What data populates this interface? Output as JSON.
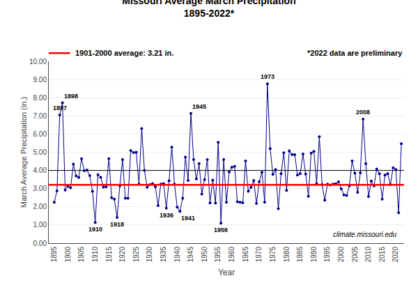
{
  "chart_data": {
    "type": "line",
    "title": "Missouri Average March Precipitation",
    "subtitle": "1895-2022*",
    "xlabel": "Year",
    "ylabel": "March Average Precipitation (in.)",
    "note": "*2022 data are preliminary",
    "source": "climate.missouri.edu",
    "color": "#00008B",
    "marker": "circle",
    "grid": true,
    "x": [
      1895,
      1896,
      1897,
      1898,
      1899,
      1900,
      1901,
      1902,
      1903,
      1904,
      1905,
      1906,
      1907,
      1908,
      1909,
      1910,
      1911,
      1912,
      1913,
      1914,
      1915,
      1916,
      1917,
      1918,
      1919,
      1920,
      1921,
      1922,
      1923,
      1924,
      1925,
      1926,
      1927,
      1928,
      1929,
      1930,
      1931,
      1932,
      1933,
      1934,
      1935,
      1936,
      1937,
      1938,
      1939,
      1940,
      1941,
      1942,
      1943,
      1944,
      1945,
      1946,
      1947,
      1948,
      1949,
      1950,
      1951,
      1952,
      1953,
      1954,
      1955,
      1956,
      1957,
      1958,
      1959,
      1960,
      1961,
      1962,
      1963,
      1964,
      1965,
      1966,
      1967,
      1968,
      1969,
      1970,
      1971,
      1972,
      1973,
      1974,
      1975,
      1976,
      1977,
      1978,
      1979,
      1980,
      1981,
      1982,
      1983,
      1984,
      1985,
      1986,
      1987,
      1988,
      1989,
      1990,
      1991,
      1992,
      1993,
      1994,
      1995,
      1996,
      1997,
      1998,
      1999,
      2000,
      2001,
      2002,
      2003,
      2004,
      2005,
      2006,
      2007,
      2008,
      2009,
      2010,
      2011,
      2012,
      2013,
      2014,
      2015,
      2016,
      2017,
      2018,
      2019,
      2020,
      2021,
      2022
    ],
    "values": [
      2.25,
      2.87,
      7.05,
      7.72,
      2.92,
      3.13,
      3.05,
      4.35,
      3.7,
      3.61,
      4.65,
      3.98,
      4.02,
      3.72,
      2.85,
      1.14,
      3.76,
      3.62,
      3.08,
      3.1,
      4.65,
      2.5,
      2.42,
      1.42,
      3.15,
      4.6,
      2.47,
      2.47,
      5.1,
      4.98,
      5.0,
      3.25,
      6.3,
      4.0,
      3.07,
      3.22,
      3.28,
      3.1,
      2.07,
      3.25,
      3.28,
      1.93,
      3.43,
      5.28,
      3.25,
      1.98,
      1.75,
      2.47,
      4.73,
      3.45,
      7.14,
      4.6,
      3.53,
      4.38,
      2.7,
      3.5,
      4.6,
      2.21,
      3.47,
      2.2,
      5.55,
      1.1,
      4.6,
      2.25,
      3.92,
      4.18,
      4.22,
      2.28,
      2.25,
      2.22,
      4.52,
      2.85,
      3.07,
      3.45,
      2.18,
      3.38,
      3.9,
      2.25,
      8.76,
      5.2,
      3.78,
      4.05,
      1.9,
      3.82,
      4.97,
      2.9,
      5.08,
      4.88,
      4.87,
      3.75,
      3.82,
      4.9,
      3.8,
      2.58,
      4.95,
      5.05,
      3.28,
      5.85,
      3.22,
      2.37,
      3.25,
      3.2,
      3.25,
      3.27,
      3.37,
      2.99,
      2.65,
      2.62,
      3.15,
      4.52,
      3.85,
      2.8,
      3.87,
      6.82,
      4.37,
      2.57,
      3.42,
      3.15,
      4.08,
      3.82,
      2.42,
      3.75,
      3.82,
      3.22,
      4.15,
      4.05,
      1.68,
      5.47
    ],
    "reference_lines": [
      {
        "value": 3.21,
        "color": "#FF0000",
        "label": "1901-2000 average: 3.21 in."
      },
      {
        "value": 4.0,
        "color": "#000000"
      }
    ],
    "annotations": [
      {
        "x": 1897,
        "y": 7.05,
        "text": "1897"
      },
      {
        "x": 1898,
        "y": 7.72,
        "text": "1898"
      },
      {
        "x": 1910,
        "y": 1.14,
        "text": "1910"
      },
      {
        "x": 1918,
        "y": 1.42,
        "text": "1918"
      },
      {
        "x": 1936,
        "y": 1.93,
        "text": "1936"
      },
      {
        "x": 1941,
        "y": 1.75,
        "text": "1941"
      },
      {
        "x": 1945,
        "y": 7.14,
        "text": "1945"
      },
      {
        "x": 1956,
        "y": 1.1,
        "text": "1956"
      },
      {
        "x": 1973,
        "y": 8.76,
        "text": "1973"
      },
      {
        "x": 2008,
        "y": 6.82,
        "text": "2008"
      }
    ],
    "xlim": [
      1893,
      2023
    ],
    "xticks": [
      1895,
      1900,
      1905,
      1910,
      1915,
      1920,
      1925,
      1930,
      1935,
      1940,
      1945,
      1950,
      1955,
      1960,
      1965,
      1970,
      1975,
      1980,
      1985,
      1990,
      1995,
      2000,
      2005,
      2010,
      2015,
      2020
    ],
    "ylim": [
      0.0,
      10.0
    ],
    "yticks": [
      {
        "value": 0.0,
        "label": "0.00"
      },
      {
        "value": 1.0,
        "label": "1.00"
      },
      {
        "value": 2.0,
        "label": "2.00"
      },
      {
        "value": 3.0,
        "label": "3.00"
      },
      {
        "value": 4.0,
        "label": "4.00"
      },
      {
        "value": 5.0,
        "label": "5.00"
      },
      {
        "value": 6.0,
        "label": "6.00"
      },
      {
        "value": 7.0,
        "label": "7.00"
      },
      {
        "value": 8.0,
        "label": "8.00"
      },
      {
        "value": 9.0,
        "label": "9.00"
      },
      {
        "value": 10.0,
        "label": "10.00"
      }
    ]
  }
}
